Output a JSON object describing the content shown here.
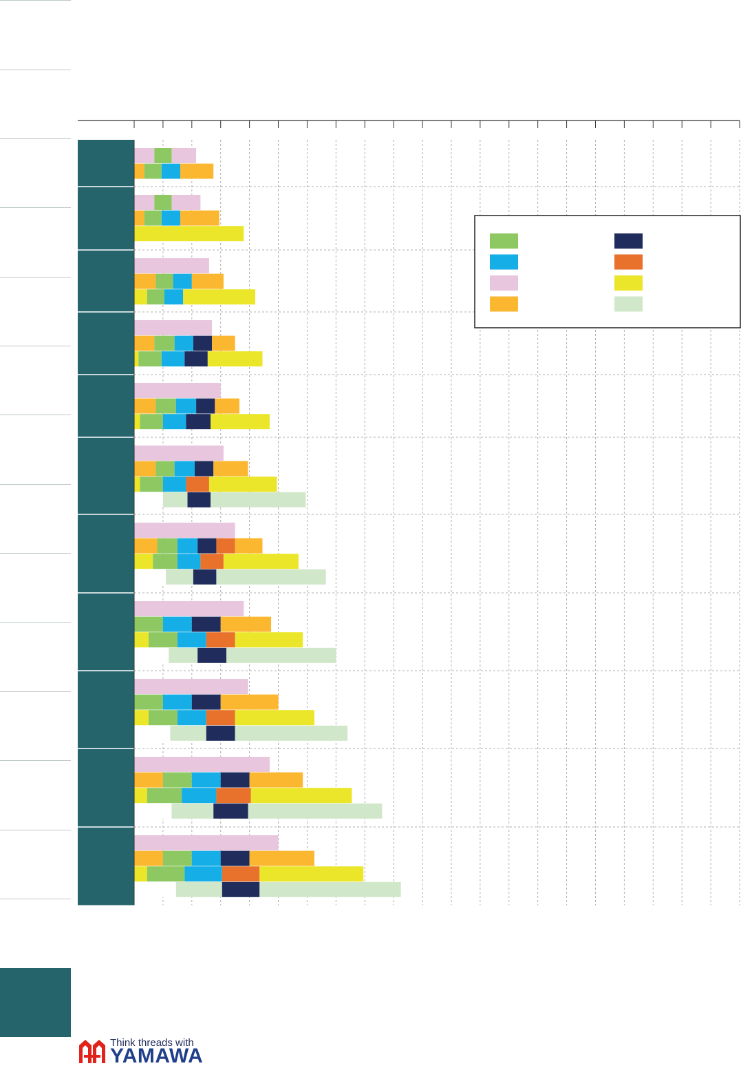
{
  "chart_data": {
    "type": "bar",
    "orientation": "horizontal-stacked",
    "title": "",
    "xlabel": "",
    "ylabel": "",
    "grid": true,
    "legend_position": "top-right",
    "legend": [
      {
        "color": "#8dc863",
        "label": ""
      },
      {
        "color": "#1f2c5c",
        "label": ""
      },
      {
        "color": "#16aee6",
        "label": ""
      },
      {
        "color": "#e8712b",
        "label": ""
      },
      {
        "color": "#e8c6de",
        "label": ""
      },
      {
        "color": "#ebe629",
        "label": ""
      },
      {
        "color": "#fcb731",
        "label": ""
      },
      {
        "color": "#d1e7c9",
        "label": ""
      }
    ],
    "groups": [
      {
        "rows": [
          [
            {
              "c": "#e8c6de",
              "v": 0.7
            },
            {
              "c": "#8dc863",
              "v": 0.6
            },
            {
              "c": "#e8c6de",
              "v": 0.85
            }
          ],
          [
            {
              "c": "#fcb731",
              "v": 0.35
            },
            {
              "c": "#8dc863",
              "v": 0.6
            },
            {
              "c": "#16aee6",
              "v": 0.65
            },
            {
              "c": "#fcb731",
              "v": 1.15
            }
          ]
        ]
      },
      {
        "rows": [
          [
            {
              "c": "#e8c6de",
              "v": 0.7
            },
            {
              "c": "#8dc863",
              "v": 0.6
            },
            {
              "c": "#e8c6de",
              "v": 1.0
            }
          ],
          [
            {
              "c": "#fcb731",
              "v": 0.35
            },
            {
              "c": "#8dc863",
              "v": 0.6
            },
            {
              "c": "#16aee6",
              "v": 0.65
            },
            {
              "c": "#fcb731",
              "v": 1.35
            }
          ],
          [
            {
              "c": "#ebe629",
              "v": 3.8
            }
          ]
        ]
      },
      {
        "rows": [
          [
            {
              "c": "#e8c6de",
              "v": 2.6
            }
          ],
          [
            {
              "c": "#fcb731",
              "v": 0.75
            },
            {
              "c": "#8dc863",
              "v": 0.6
            },
            {
              "c": "#16aee6",
              "v": 0.65
            },
            {
              "c": "#fcb731",
              "v": 1.1
            }
          ],
          [
            {
              "c": "#ebe629",
              "v": 0.45
            },
            {
              "c": "#8dc863",
              "v": 0.6
            },
            {
              "c": "#16aee6",
              "v": 0.65
            },
            {
              "c": "#ebe629",
              "v": 2.5
            }
          ]
        ]
      },
      {
        "rows": [
          [
            {
              "c": "#e8c6de",
              "v": 2.7
            }
          ],
          [
            {
              "c": "#fcb731",
              "v": 0.7
            },
            {
              "c": "#8dc863",
              "v": 0.7
            },
            {
              "c": "#16aee6",
              "v": 0.65
            },
            {
              "c": "#1f2c5c",
              "v": 0.65
            },
            {
              "c": "#fcb731",
              "v": 0.8
            }
          ],
          [
            {
              "c": "#ebe629",
              "v": 0.15
            },
            {
              "c": "#8dc863",
              "v": 0.8
            },
            {
              "c": "#16aee6",
              "v": 0.8
            },
            {
              "c": "#1f2c5c",
              "v": 0.8
            },
            {
              "c": "#ebe629",
              "v": 1.9
            }
          ]
        ]
      },
      {
        "rows": [
          [
            {
              "c": "#e8c6de",
              "v": 3.0
            }
          ],
          [
            {
              "c": "#fcb731",
              "v": 0.75
            },
            {
              "c": "#8dc863",
              "v": 0.7
            },
            {
              "c": "#16aee6",
              "v": 0.7
            },
            {
              "c": "#1f2c5c",
              "v": 0.65
            },
            {
              "c": "#fcb731",
              "v": 0.85
            }
          ],
          [
            {
              "c": "#ebe629",
              "v": 0.2
            },
            {
              "c": "#8dc863",
              "v": 0.8
            },
            {
              "c": "#16aee6",
              "v": 0.8
            },
            {
              "c": "#1f2c5c",
              "v": 0.85
            },
            {
              "c": "#ebe629",
              "v": 2.05
            }
          ]
        ]
      },
      {
        "rows": [
          [
            {
              "c": "#e8c6de",
              "v": 3.1
            }
          ],
          [
            {
              "c": "#fcb731",
              "v": 0.75
            },
            {
              "c": "#8dc863",
              "v": 0.65
            },
            {
              "c": "#16aee6",
              "v": 0.7
            },
            {
              "c": "#1f2c5c",
              "v": 0.65
            },
            {
              "c": "#fcb731",
              "v": 1.2
            }
          ],
          [
            {
              "c": "#ebe629",
              "v": 0.2
            },
            {
              "c": "#8dc863",
              "v": 0.8
            },
            {
              "c": "#16aee6",
              "v": 0.8
            },
            {
              "c": "#e8712b",
              "v": 0.8
            },
            {
              "c": "#ebe629",
              "v": 2.35
            }
          ],
          [
            {
              "c": "#ffffff",
              "v": 1.0
            },
            {
              "c": "#d1e7c9",
              "v": 0.85
            },
            {
              "c": "#1f2c5c",
              "v": 0.8
            },
            {
              "c": "#d1e7c9",
              "v": 3.3
            }
          ]
        ]
      },
      {
        "rows": [
          [
            {
              "c": "#e8c6de",
              "v": 3.5
            }
          ],
          [
            {
              "c": "#fcb731",
              "v": 0.8
            },
            {
              "c": "#8dc863",
              "v": 0.7
            },
            {
              "c": "#16aee6",
              "v": 0.7
            },
            {
              "c": "#1f2c5c",
              "v": 0.65
            },
            {
              "c": "#e8712b",
              "v": 0.65
            },
            {
              "c": "#fcb731",
              "v": 0.95
            }
          ],
          [
            {
              "c": "#ebe629",
              "v": 0.65
            },
            {
              "c": "#8dc863",
              "v": 0.85
            },
            {
              "c": "#16aee6",
              "v": 0.8
            },
            {
              "c": "#e8712b",
              "v": 0.8
            },
            {
              "c": "#ebe629",
              "v": 2.6
            }
          ],
          [
            {
              "c": "#ffffff",
              "v": 1.1
            },
            {
              "c": "#d1e7c9",
              "v": 0.95
            },
            {
              "c": "#1f2c5c",
              "v": 0.8
            },
            {
              "c": "#d1e7c9",
              "v": 3.8
            }
          ]
        ]
      },
      {
        "rows": [
          [
            {
              "c": "#e8c6de",
              "v": 3.8
            }
          ],
          [
            {
              "c": "#8dc863",
              "v": 1.0
            },
            {
              "c": "#16aee6",
              "v": 1.0
            },
            {
              "c": "#1f2c5c",
              "v": 1.0
            },
            {
              "c": "#fcb731",
              "v": 1.75
            }
          ],
          [
            {
              "c": "#ebe629",
              "v": 0.5
            },
            {
              "c": "#8dc863",
              "v": 1.0
            },
            {
              "c": "#16aee6",
              "v": 1.0
            },
            {
              "c": "#e8712b",
              "v": 1.0
            },
            {
              "c": "#ebe629",
              "v": 2.35
            }
          ],
          [
            {
              "c": "#ffffff",
              "v": 1.2
            },
            {
              "c": "#d1e7c9",
              "v": 1.0
            },
            {
              "c": "#1f2c5c",
              "v": 1.0
            },
            {
              "c": "#d1e7c9",
              "v": 3.8
            }
          ]
        ]
      },
      {
        "rows": [
          [
            {
              "c": "#e8c6de",
              "v": 3.95
            }
          ],
          [
            {
              "c": "#8dc863",
              "v": 1.0
            },
            {
              "c": "#16aee6",
              "v": 1.0
            },
            {
              "c": "#1f2c5c",
              "v": 1.0
            },
            {
              "c": "#fcb731",
              "v": 2.0
            }
          ],
          [
            {
              "c": "#ebe629",
              "v": 0.5
            },
            {
              "c": "#8dc863",
              "v": 1.0
            },
            {
              "c": "#16aee6",
              "v": 1.0
            },
            {
              "c": "#e8712b",
              "v": 1.0
            },
            {
              "c": "#ebe629",
              "v": 2.75
            }
          ],
          [
            {
              "c": "#ffffff",
              "v": 1.25
            },
            {
              "c": "#d1e7c9",
              "v": 1.25
            },
            {
              "c": "#1f2c5c",
              "v": 1.0
            },
            {
              "c": "#d1e7c9",
              "v": 3.9
            }
          ]
        ]
      },
      {
        "rows": [
          [
            {
              "c": "#e8c6de",
              "v": 4.7
            }
          ],
          [
            {
              "c": "#fcb731",
              "v": 1.0
            },
            {
              "c": "#8dc863",
              "v": 1.0
            },
            {
              "c": "#16aee6",
              "v": 1.0
            },
            {
              "c": "#1f2c5c",
              "v": 1.0
            },
            {
              "c": "#fcb731",
              "v": 1.85
            }
          ],
          [
            {
              "c": "#ebe629",
              "v": 0.45
            },
            {
              "c": "#8dc863",
              "v": 1.2
            },
            {
              "c": "#16aee6",
              "v": 1.2
            },
            {
              "c": "#e8712b",
              "v": 1.2
            },
            {
              "c": "#ebe629",
              "v": 3.5
            }
          ],
          [
            {
              "c": "#ffffff",
              "v": 1.3
            },
            {
              "c": "#d1e7c9",
              "v": 1.45
            },
            {
              "c": "#1f2c5c",
              "v": 1.2
            },
            {
              "c": "#d1e7c9",
              "v": 4.65
            }
          ]
        ]
      },
      {
        "rows": [
          [
            {
              "c": "#e8c6de",
              "v": 5.0
            }
          ],
          [
            {
              "c": "#fcb731",
              "v": 1.0
            },
            {
              "c": "#8dc863",
              "v": 1.0
            },
            {
              "c": "#16aee6",
              "v": 1.0
            },
            {
              "c": "#1f2c5c",
              "v": 1.0
            },
            {
              "c": "#fcb731",
              "v": 2.25
            }
          ],
          [
            {
              "c": "#ebe629",
              "v": 0.45
            },
            {
              "c": "#8dc863",
              "v": 1.3
            },
            {
              "c": "#16aee6",
              "v": 1.3
            },
            {
              "c": "#e8712b",
              "v": 1.3
            },
            {
              "c": "#ebe629",
              "v": 3.6
            }
          ],
          [
            {
              "c": "#ffffff",
              "v": 1.45
            },
            {
              "c": "#d1e7c9",
              "v": 1.6
            },
            {
              "c": "#1f2c5c",
              "v": 1.3
            },
            {
              "c": "#d1e7c9",
              "v": 4.9
            }
          ]
        ]
      }
    ],
    "xlim": [
      0,
      21
    ],
    "colors": {
      "panel": "#25646b",
      "grid": "#b0b0b0",
      "axis": "#333333"
    }
  },
  "brand": {
    "tagline": "Think threads with",
    "name": "YAMAWA"
  }
}
